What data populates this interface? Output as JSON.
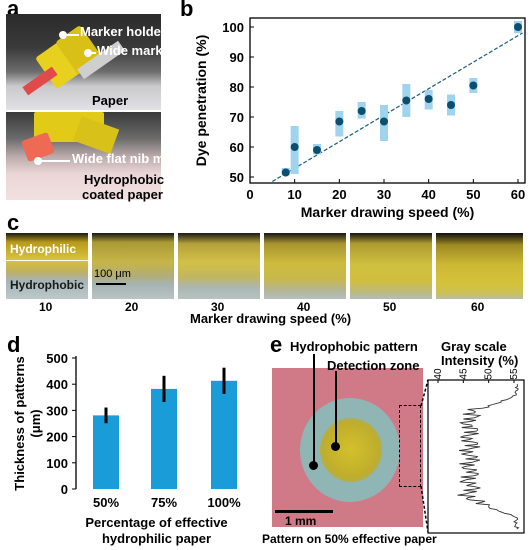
{
  "panels": {
    "a": {
      "letter": "a",
      "labels": {
        "marker_holder": "Marker holder",
        "wide_marker": "Wide marker",
        "paper": "Paper",
        "flat_nib": "Wide flat nib marker",
        "coated_1": "Hydrophobic",
        "coated_2": "coated paper"
      }
    },
    "b": {
      "letter": "b"
    },
    "c": {
      "letter": "c",
      "hydrophilic": "Hydrophilic",
      "hydrophobic": "Hydrophobic",
      "scale": "100 μm",
      "speeds": [
        "10",
        "20",
        "30",
        "40",
        "50",
        "60"
      ],
      "xlabel": "Marker drawing speed (%)"
    },
    "d": {
      "letter": "d"
    },
    "e": {
      "letter": "e",
      "hydrophobic_pattern": "Hydrophobic pattern",
      "detection_zone": "Detection zone",
      "scale": "1 mm",
      "caption": "Pattern on 50% effective paper",
      "gray_title_1": "Gray scale",
      "gray_title_2": "Intensity (%)",
      "gray_ticks": [
        "40",
        "45",
        "50",
        "55"
      ]
    }
  },
  "colors": {
    "marker_blue": "#0b4f6e",
    "errbar_blue": "#9fd3ee",
    "bar_blue": "#1a9cd8",
    "fit_line": "#1b5e7a"
  },
  "chart_data": [
    {
      "type": "scatter",
      "panel": "b",
      "xlabel": "Marker drawing speed (%)",
      "ylabel": "Dye penetration (%)",
      "xlim": [
        0,
        60
      ],
      "ylim": [
        48,
        103
      ],
      "xticks": [
        0,
        10,
        20,
        30,
        40,
        50,
        60
      ],
      "yticks": [
        50,
        60,
        70,
        80,
        90,
        100
      ],
      "points": [
        {
          "x": 8,
          "y": 51.5,
          "lo": 50.5,
          "hi": 53
        },
        {
          "x": 10,
          "y": 60,
          "lo": 51,
          "hi": 67
        },
        {
          "x": 15,
          "y": 59,
          "lo": 57.5,
          "hi": 61
        },
        {
          "x": 20,
          "y": 68.5,
          "lo": 63.5,
          "hi": 72
        },
        {
          "x": 25,
          "y": 72,
          "lo": 69.5,
          "hi": 75
        },
        {
          "x": 30,
          "y": 68.5,
          "lo": 62,
          "hi": 74
        },
        {
          "x": 35,
          "y": 75.5,
          "lo": 70,
          "hi": 81
        },
        {
          "x": 40,
          "y": 76,
          "lo": 72.5,
          "hi": 79
        },
        {
          "x": 45,
          "y": 74,
          "lo": 70.5,
          "hi": 77.5
        },
        {
          "x": 50,
          "y": 80.5,
          "lo": 78,
          "hi": 83
        },
        {
          "x": 60,
          "y": 100,
          "lo": 98,
          "hi": 102
        }
      ],
      "fit": {
        "x0": 5,
        "y0": 48.5,
        "x1": 61,
        "y1": 98
      }
    },
    {
      "type": "bar",
      "panel": "d",
      "categories": [
        "50%",
        "75%",
        "100%"
      ],
      "values": [
        281,
        382,
        413
      ],
      "errors": [
        30,
        50,
        50
      ],
      "ylabel": "Thickness of patterns (μm)",
      "xlabel": "Percentage of effective hydrophilic paper",
      "ylim": [
        0,
        500
      ],
      "yticks": [
        0,
        100,
        200,
        300,
        400,
        500
      ]
    }
  ]
}
